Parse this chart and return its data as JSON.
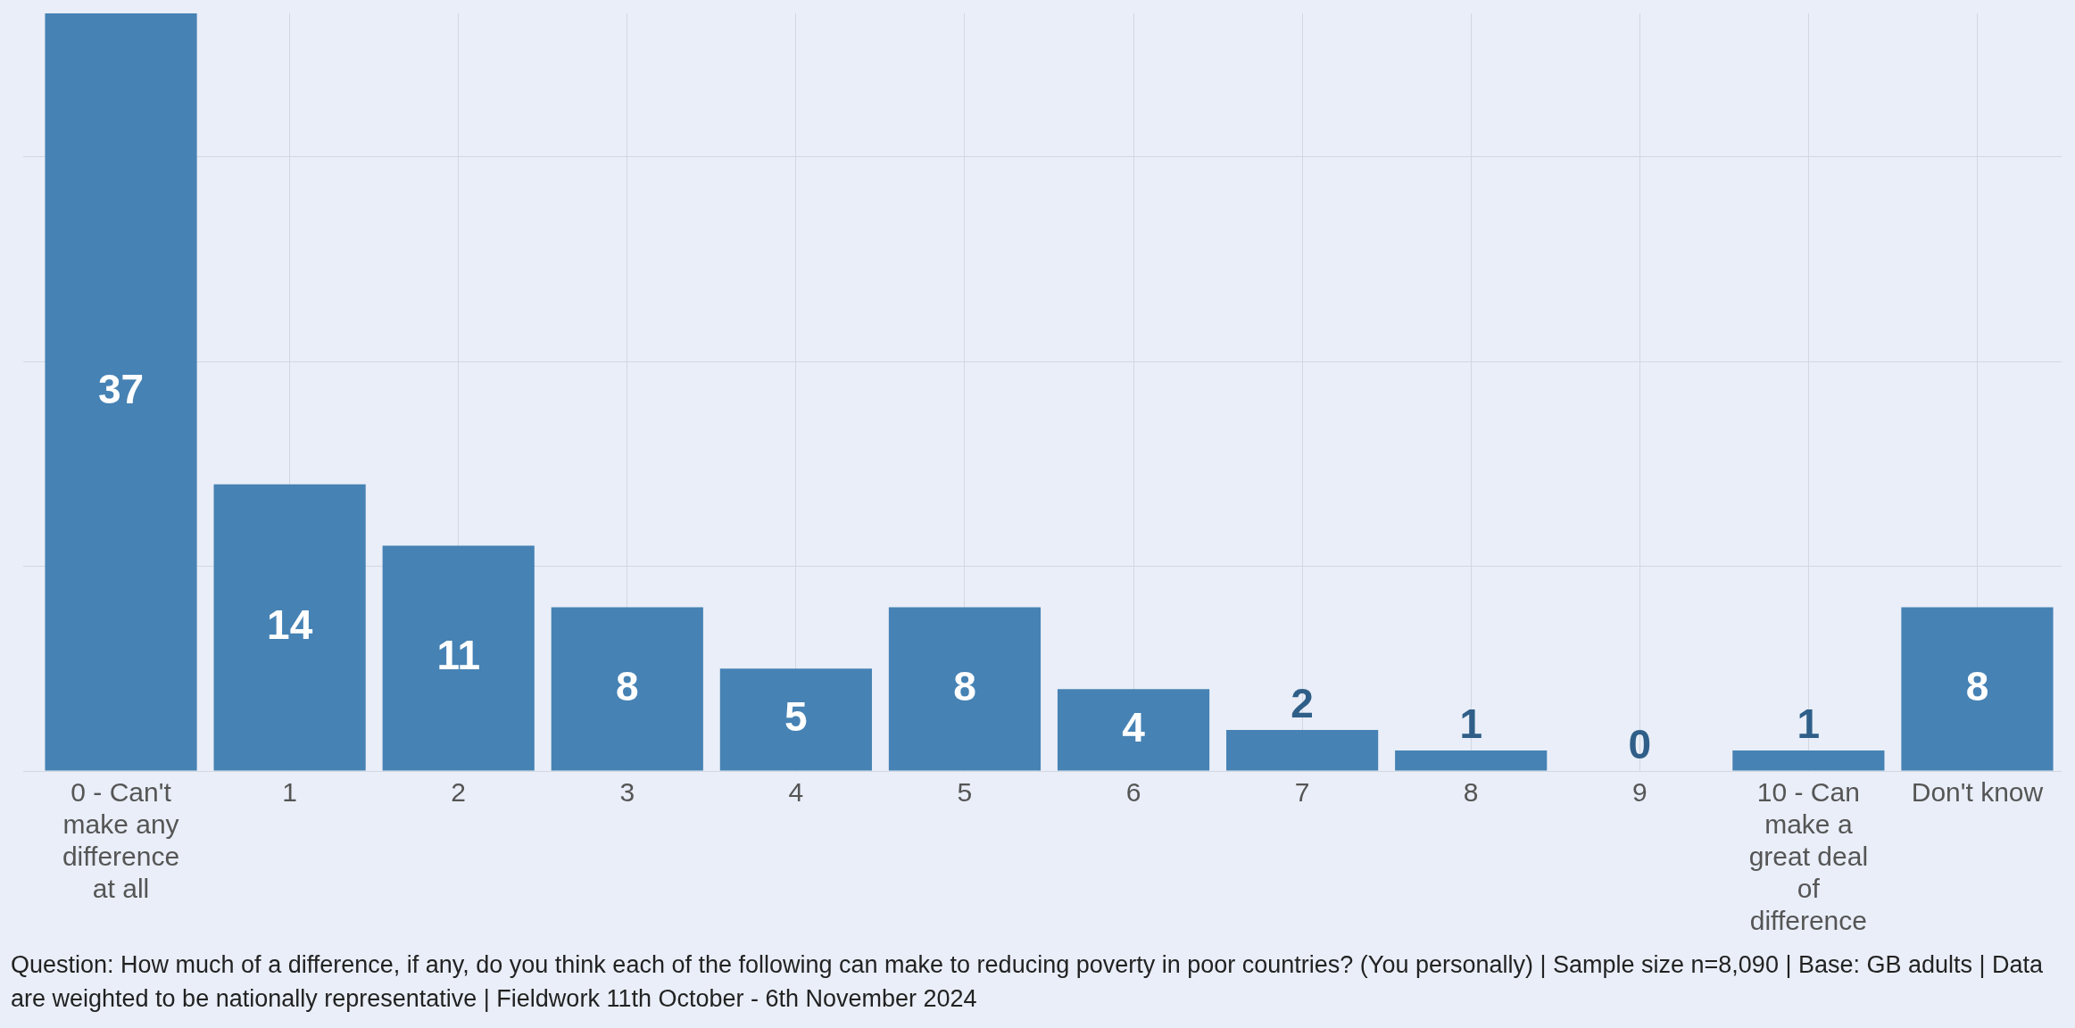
{
  "chart_data": {
    "type": "bar",
    "categories": [
      "0 - Can't make any difference at all",
      "1",
      "2",
      "3",
      "4",
      "5",
      "6",
      "7",
      "8",
      "9",
      "10 - Can make a great deal of difference",
      "Don't know"
    ],
    "values": [
      37,
      14,
      11,
      8,
      5,
      8,
      4,
      2,
      1,
      0,
      1,
      8
    ],
    "color": "#4682b4",
    "ylim": [
      0,
      37
    ],
    "yticks": [
      {
        "value": 0,
        "label": null
      },
      {
        "value": 10,
        "label": null
      },
      {
        "value": 20,
        "label": null
      },
      {
        "value": 30,
        "label": null
      }
    ],
    "tick_labels": "x",
    "grid": true,
    "data_labels": true,
    "annotations": [
      "Question: How much of a difference, if any, do you think each of the following can make to reducing poverty in poor countries? (You personally) | Sample size n=8,090 | Base: GB adults | Data are weighted to be nationally representative | Fieldwork 11th October - 6th November 2024"
    ]
  }
}
